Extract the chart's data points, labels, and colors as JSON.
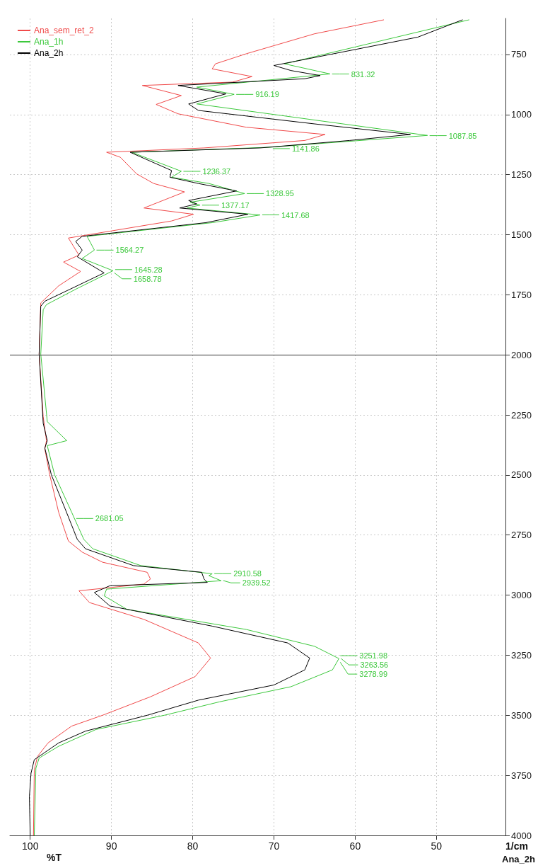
{
  "chart_data": {
    "type": "line",
    "xlabel": "%T",
    "ylabel": "1/cm",
    "xlim": [
      102.5,
      41.5
    ],
    "xticks": [
      100,
      90,
      80,
      70,
      60,
      50
    ],
    "ylim": [
      4000,
      600
    ],
    "yticks": [
      750,
      1000,
      1250,
      1500,
      1750,
      2000,
      2250,
      2500,
      2750,
      3000,
      3250,
      3500,
      3750,
      4000
    ],
    "grid": true,
    "legend": "top left",
    "ref_lines": [
      {
        "axis": "y",
        "value": 2000,
        "color": "#333333",
        "line_style": "solid"
      }
    ],
    "series": [
      {
        "name": "Ana_sem_ret_2",
        "color": "#f04a4a",
        "values": [
          606,
          664,
          747,
          789,
          810,
          842,
          865,
          879,
          921,
          958,
          997,
          1053,
          1083,
          1108,
          1139,
          1157,
          1178,
          1247,
          1287,
          1322,
          1389,
          1415,
          1443,
          1514,
          1585,
          1614,
          1653,
          1713,
          1784,
          1997,
          2257,
          2357,
          2392,
          2499,
          2655,
          2775,
          2821,
          2863,
          2905,
          2933,
          2954,
          2982,
          3031,
          3101,
          3199,
          3262,
          3339,
          3423,
          3500,
          3545,
          3615,
          3671,
          3727,
          4000
        ],
        "x": [
          56.5,
          65,
          73.4,
          77.2,
          77.6,
          72.7,
          75.1,
          86.2,
          81.4,
          84.5,
          81.8,
          73.4,
          63.7,
          66.2,
          78.6,
          90.6,
          88.9,
          86.9,
          84.8,
          81,
          86,
          79.9,
          82.6,
          95.3,
          94,
          95.9,
          93.8,
          96.5,
          98.7,
          98.9,
          98.4,
          98,
          98.2,
          97.6,
          96.5,
          95.3,
          93.6,
          91.1,
          85.6,
          85.2,
          86,
          94,
          92.7,
          86,
          79.3,
          77.8,
          79.7,
          85.2,
          91.1,
          94.9,
          97.8,
          99.1,
          99.5,
          99.6
        ]
      },
      {
        "name": "Ana_1h",
        "color": "#3cc83c",
        "values": [
          606,
          789,
          831,
          886,
          916,
          956,
          1087,
          1136,
          1157,
          1236,
          1261,
          1287,
          1329,
          1365,
          1377,
          1389,
          1418,
          1450,
          1507,
          1564,
          1599,
          1650,
          1727,
          1791,
          1812,
          1997,
          2278,
          2357,
          2378,
          2499,
          2655,
          2768,
          2807,
          2877,
          2911,
          2919,
          2940,
          2975,
          3003,
          3059,
          3143,
          3213,
          3264,
          3311,
          3381,
          3444,
          3500,
          3559,
          3629,
          3678,
          3720,
          4000
        ],
        "x": [
          46,
          68.7,
          63.1,
          79.5,
          74.9,
          79.5,
          51.1,
          70.4,
          87.5,
          81.4,
          82.6,
          78,
          73.6,
          80.3,
          79.1,
          80.7,
          71.7,
          77.6,
          93,
          92.1,
          93.6,
          89.8,
          94.4,
          98,
          98.4,
          98.7,
          97.9,
          95.5,
          97.9,
          97,
          94.9,
          93.4,
          92.3,
          86.4,
          77.6,
          78,
          76.5,
          90.6,
          90.9,
          88.1,
          73.4,
          65,
          62,
          62.8,
          67.9,
          76.7,
          83.5,
          91.9,
          96.5,
          98.9,
          99.3,
          99.5
        ]
      },
      {
        "name": "Ana_2h",
        "color": "#000000",
        "values": [
          606,
          678,
          796,
          817,
          838,
          851,
          879,
          914,
          956,
          983,
          1039,
          1083,
          1108,
          1139,
          1157,
          1233,
          1261,
          1287,
          1318,
          1358,
          1372,
          1389,
          1415,
          1450,
          1507,
          1528,
          1564,
          1592,
          1659,
          1727,
          1777,
          1798,
          1997,
          2285,
          2357,
          2388,
          2499,
          2641,
          2768,
          2807,
          2877,
          2905,
          2933,
          2947,
          2961,
          2989,
          3045,
          3129,
          3199,
          3262,
          3311,
          3374,
          3437,
          3500,
          3566,
          3615,
          3685,
          3741,
          3839,
          4000
        ],
        "x": [
          46.8,
          52.3,
          70,
          67.9,
          64.3,
          66.2,
          81.8,
          75.9,
          80.5,
          79.3,
          65,
          53.2,
          60.7,
          71.7,
          87.7,
          82.6,
          82.8,
          79.3,
          74.6,
          80.5,
          79.5,
          81.6,
          73.2,
          78.4,
          93.6,
          94.4,
          93.6,
          94.2,
          90.9,
          95.1,
          98.2,
          98.7,
          98.9,
          98.4,
          97.9,
          98.2,
          97.4,
          95.7,
          94.2,
          93.2,
          87.3,
          78.9,
          78.6,
          78.2,
          90.2,
          92.1,
          90.2,
          77.6,
          68.3,
          65.6,
          66.2,
          70,
          79.3,
          85.6,
          93.2,
          96.5,
          99.5,
          99.9,
          100.1,
          100
        ]
      }
    ],
    "annotations": [
      {
        "text": "831.32",
        "y": 831.32,
        "x": 63.1
      },
      {
        "text": "916.19",
        "y": 916.19,
        "x": 74.9
      },
      {
        "text": "1087.85",
        "y": 1087.85,
        "x": 51.1
      },
      {
        "text": "1141.86",
        "y": 1141.86,
        "x": 70.4
      },
      {
        "text": "1236.37",
        "y": 1236.37,
        "x": 81.4
      },
      {
        "text": "1328.95",
        "y": 1328.95,
        "x": 73.6
      },
      {
        "text": "1377.17",
        "y": 1377.17,
        "x": 79.1
      },
      {
        "text": "1417.68",
        "y": 1417.68,
        "x": 71.7
      },
      {
        "text": "1564.27",
        "y": 1564.27,
        "x": 92.1
      },
      {
        "text": "1645.28",
        "y": 1645.28,
        "x": 89.8
      },
      {
        "text": "1658.78",
        "y": 1658.78,
        "x": 89.9
      },
      {
        "text": "2681.05",
        "y": 2681.05,
        "x": 94.6
      },
      {
        "text": "2910.58",
        "y": 2910.58,
        "x": 77.6
      },
      {
        "text": "2939.52",
        "y": 2939.52,
        "x": 76.5
      },
      {
        "text": "3251.98",
        "y": 3251.98,
        "x": 62.1
      },
      {
        "text": "3263.56",
        "y": 3263.56,
        "x": 62
      },
      {
        "text": "3278.99",
        "y": 3278.99,
        "x": 62.1
      },
      "Ana_2h"
    ]
  }
}
